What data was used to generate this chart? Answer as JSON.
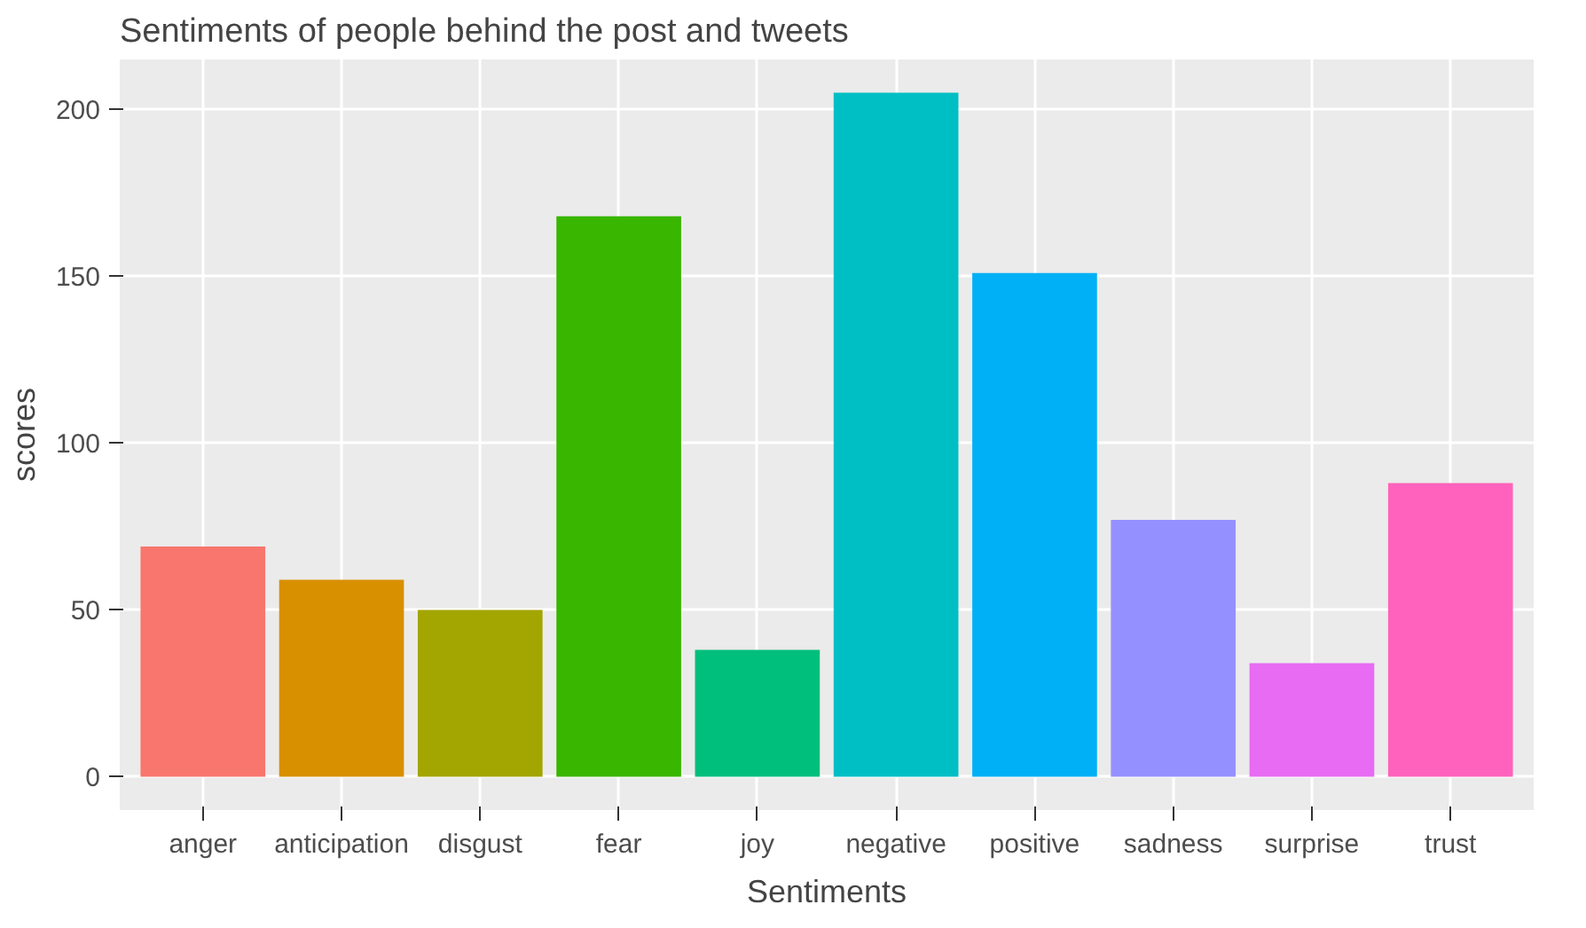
{
  "chart_data": {
    "type": "bar",
    "title": "Sentiments of people behind the post and tweets",
    "xlabel": "Sentiments",
    "ylabel": "scores",
    "categories": [
      "anger",
      "anticipation",
      "disgust",
      "fear",
      "joy",
      "negative",
      "positive",
      "sadness",
      "surprise",
      "trust"
    ],
    "values": [
      69,
      59,
      50,
      168,
      38,
      205,
      151,
      77,
      34,
      88
    ],
    "colors": [
      "#f8766d",
      "#d89000",
      "#a3a500",
      "#39b600",
      "#00bf7d",
      "#00bfc4",
      "#00b0f6",
      "#9590ff",
      "#e76bf3",
      "#ff62bc"
    ],
    "ylim": [
      -10,
      215
    ],
    "yticks": [
      0,
      50,
      100,
      150,
      200
    ],
    "grid": true
  }
}
